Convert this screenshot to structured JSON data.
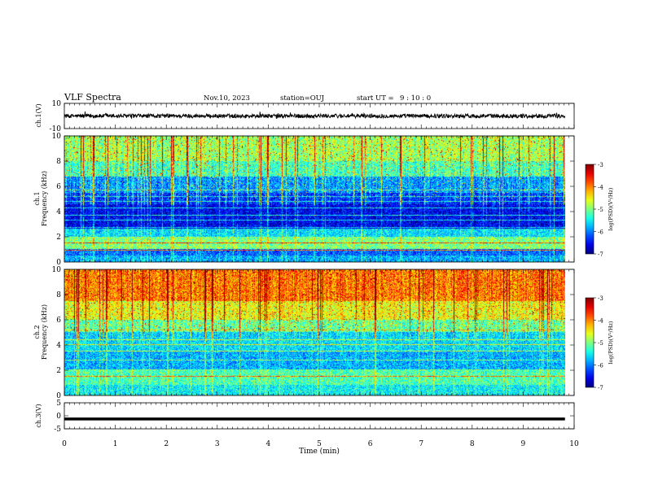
{
  "header": {
    "title": "VLF Spectra",
    "date": "Nov.10, 2023",
    "station": "station=OUJ",
    "start_label": "start UT =",
    "start_time": "9 : 10 : 0"
  },
  "chart_data": [
    {
      "type": "line",
      "ylabel": "ch.1(V)",
      "ylim": [
        -10,
        10
      ],
      "yticks": [
        "10",
        "-10"
      ],
      "xlim": [
        0,
        10
      ],
      "description_series": [
        {
          "values_range": [
            -3,
            3
          ]
        }
      ]
    },
    {
      "type": "heatmap",
      "ylabel_line1": "ch.1",
      "ylabel_line2": "Frequency (kHz)",
      "ylim": [
        0,
        10
      ],
      "yticks": [
        "0",
        "2",
        "4",
        "6",
        "8",
        "10"
      ],
      "xlim": [
        0,
        10
      ],
      "data_end_min": 9.82,
      "colorbar": {
        "min": -7,
        "max": -3,
        "ticks": [
          "-3",
          "-4",
          "-5",
          "-6",
          "-7"
        ],
        "label": "log(PSD)(V²/Hz)"
      }
    },
    {
      "type": "heatmap",
      "ylabel_line1": "ch.2",
      "ylabel_line2": "Frequency (kHz)",
      "ylim": [
        0,
        10
      ],
      "yticks": [
        "0",
        "2",
        "4",
        "6",
        "8",
        "10"
      ],
      "xlim": [
        0,
        10
      ],
      "data_end_min": 9.82,
      "colorbar": {
        "min": -7,
        "max": -3,
        "ticks": [
          "-3",
          "-4",
          "-5",
          "-6",
          "-7"
        ],
        "label": "log(PSD)(V²/Hz)"
      }
    },
    {
      "type": "line",
      "ylabel": "ch.3(V)",
      "ylim": [
        -5,
        5
      ],
      "yticks": [
        "5",
        "0",
        "-5"
      ],
      "xlim": [
        0,
        10
      ],
      "series": [
        {
          "values": [
            -1.2
          ]
        }
      ]
    }
  ],
  "xaxis": {
    "label": "Time (min)",
    "ticks": [
      "0",
      "1",
      "2",
      "3",
      "4",
      "5",
      "6",
      "7",
      "8",
      "9",
      "10"
    ]
  }
}
